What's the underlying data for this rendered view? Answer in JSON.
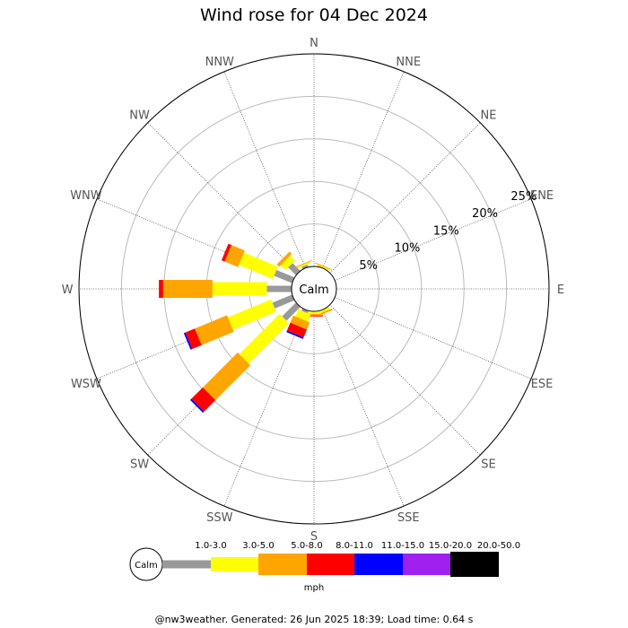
{
  "chart_data": {
    "type": "wind-rose",
    "title": "Wind rose for 04 Dec 2024",
    "directions": [
      "N",
      "NNE",
      "NE",
      "ENE",
      "E",
      "ESE",
      "SE",
      "SSE",
      "S",
      "SSW",
      "SW",
      "WSW",
      "W",
      "WNW",
      "NW",
      "NNW"
    ],
    "ring_labels": [
      "5%",
      "10%",
      "15%",
      "20%",
      "25%"
    ],
    "rmax_percent": 25,
    "calm_label": "Calm",
    "speed_unit": "mph",
    "bins": [
      {
        "label": "1.0-3.0",
        "color": "#999999"
      },
      {
        "label": "3.0-5.0",
        "color": "#ffff00"
      },
      {
        "label": "5.0-8.0",
        "color": "#ffa500"
      },
      {
        "label": "8.0-11.0",
        "color": "#ff0000"
      },
      {
        "label": "11.0-15.0",
        "color": "#0000ff"
      },
      {
        "label": "15.0-20.0",
        "color": "#a020f0"
      },
      {
        "label": "20.0-50.0",
        "color": "#000000"
      }
    ],
    "frequencies": {
      "N": [
        0,
        0,
        0,
        0,
        0,
        0,
        0
      ],
      "NNE": [
        0,
        0.2,
        0.1,
        0,
        0,
        0,
        0
      ],
      "NE": [
        0,
        0,
        0,
        0,
        0,
        0,
        0
      ],
      "ENE": [
        0,
        0,
        0,
        0,
        0,
        0,
        0
      ],
      "E": [
        0,
        0,
        0,
        0,
        0,
        0,
        0
      ],
      "ESE": [
        0,
        0,
        0,
        0,
        0,
        0,
        0
      ],
      "SE": [
        0,
        0,
        0,
        0,
        0,
        0,
        0
      ],
      "SSE": [
        0,
        0.3,
        0.2,
        0,
        0,
        0,
        0
      ],
      "S": [
        0,
        0.3,
        0.2,
        0.1,
        0,
        0,
        0
      ],
      "SSW": [
        0.3,
        0.9,
        0.9,
        1.0,
        0.2,
        0,
        0
      ],
      "SW": [
        2.3,
        6.7,
        5.8,
        1.9,
        0.2,
        0,
        0
      ],
      "WSW": [
        2.5,
        5.5,
        4.1,
        1.2,
        0.2,
        0,
        0
      ],
      "W": [
        2.9,
        6.4,
        5.8,
        0.5,
        0,
        0,
        0
      ],
      "WNW": [
        2.3,
        4.3,
        1.7,
        0.4,
        0,
        0,
        0
      ],
      "NW": [
        1.3,
        0.8,
        0.4,
        0,
        0,
        0,
        0
      ],
      "NNW": [
        0.3,
        0.2,
        0.1,
        0,
        0,
        0,
        0
      ]
    },
    "grid": true
  },
  "footer": "@nw3weather. Generated: 26 Jun 2025 18:39; Load time: 0.64 s"
}
